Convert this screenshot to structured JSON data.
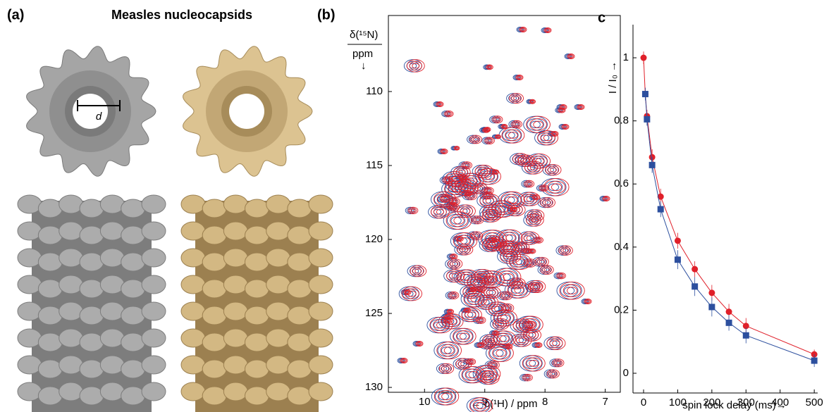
{
  "figure": {
    "panel_a_label": "(a)",
    "panel_a_title": "Measles nucleocapsids",
    "diameter_label": "d",
    "panel_b_label": "(b)",
    "panel_c_label": "c"
  },
  "chart_data": [
    {
      "type": "nmr",
      "y_label": "δ(¹⁵N)",
      "y_unit": "ppm",
      "y_arrow": "↓",
      "x_label": "← δ(¹H) / ppm",
      "xlim": [
        10.6,
        6.75
      ],
      "xticks": [
        10,
        9,
        8,
        7
      ],
      "ylim": [
        104.86,
        130.33
      ],
      "yticks": [
        110,
        115,
        120,
        125,
        130
      ],
      "series": [
        {
          "color": "#2c4f9e"
        },
        {
          "color": "#e0202a"
        }
      ]
    },
    {
      "type": "scatter",
      "x_label": "spin lock delay (ms)→",
      "y_label": "I / I₀ →",
      "xlim": [
        -31,
        510
      ],
      "xticks": [
        0,
        100,
        200,
        300,
        400,
        500
      ],
      "ylim": [
        -0.0625,
        1.105
      ],
      "yticks": [
        0,
        0.2,
        0.4,
        0.6,
        0.8,
        1
      ],
      "series": [
        {
          "color": "#e0202a",
          "marker": "circle",
          "x": [
            0,
            5,
            10,
            25,
            50,
            100,
            150,
            200,
            250,
            300,
            500
          ],
          "values": [
            1.0,
            0.885,
            0.815,
            0.685,
            0.56,
            0.42,
            0.33,
            0.255,
            0.195,
            0.15,
            0.06
          ],
          "errors": [
            0.02,
            0.02,
            0.02,
            0.025,
            0.025,
            0.025,
            0.025,
            0.025,
            0.025,
            0.025,
            0.015
          ]
        },
        {
          "color": "#2c4f9e",
          "marker": "square",
          "x": [
            5,
            10,
            25,
            50,
            100,
            150,
            200,
            250,
            300,
            500
          ],
          "values": [
            0.885,
            0.805,
            0.66,
            0.52,
            0.36,
            0.275,
            0.21,
            0.16,
            0.12,
            0.04
          ],
          "errors": [
            0.02,
            0.02,
            0.025,
            0.025,
            0.03,
            0.03,
            0.03,
            0.025,
            0.025,
            0.02
          ]
        }
      ]
    }
  ]
}
